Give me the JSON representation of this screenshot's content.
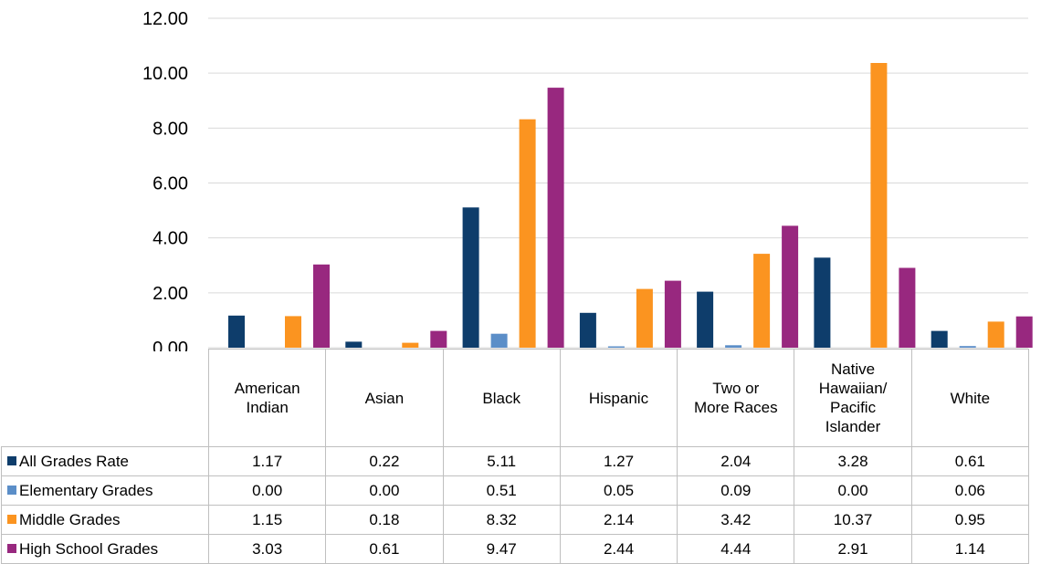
{
  "chart_data": {
    "type": "bar",
    "title": "",
    "xlabel": "",
    "ylabel": "",
    "ylim": [
      0,
      12
    ],
    "y_ticks": [
      "0.00",
      "2.00",
      "4.00",
      "6.00",
      "8.00",
      "10.00",
      "12.00"
    ],
    "grid": true,
    "legend_placement": "left of data table",
    "categories": [
      "American Indian",
      "Asian",
      "Black",
      "Hispanic",
      "Two or More Races",
      "Native Hawaiian/ Pacific Islander",
      "White"
    ],
    "series": [
      {
        "name": "All Grades Rate",
        "color": "#0e3d6b",
        "values": [
          1.17,
          0.22,
          5.11,
          1.27,
          2.04,
          3.28,
          0.61
        ],
        "labels": [
          "1.17",
          "0.22",
          "5.11",
          "1.27",
          "2.04",
          "3.28",
          "0.61"
        ]
      },
      {
        "name": "Elementary Grades",
        "color": "#5b8ec8",
        "values": [
          0.0,
          0.0,
          0.51,
          0.05,
          0.09,
          0.0,
          0.06
        ],
        "labels": [
          "0.00",
          "0.00",
          "0.51",
          "0.05",
          "0.09",
          "0.00",
          "0.06"
        ]
      },
      {
        "name": "Middle Grades",
        "color": "#fb9420",
        "values": [
          1.15,
          0.18,
          8.32,
          2.14,
          3.42,
          10.37,
          0.95
        ],
        "labels": [
          "1.15",
          "0.18",
          "8.32",
          "2.14",
          "3.42",
          "10.37",
          "0.95"
        ]
      },
      {
        "name": "High School Grades",
        "color": "#98287f",
        "values": [
          3.03,
          0.61,
          9.47,
          2.44,
          4.44,
          2.91,
          1.14
        ],
        "labels": [
          "3.03",
          "0.61",
          "9.47",
          "2.44",
          "4.44",
          "2.91",
          "1.14"
        ]
      }
    ]
  }
}
